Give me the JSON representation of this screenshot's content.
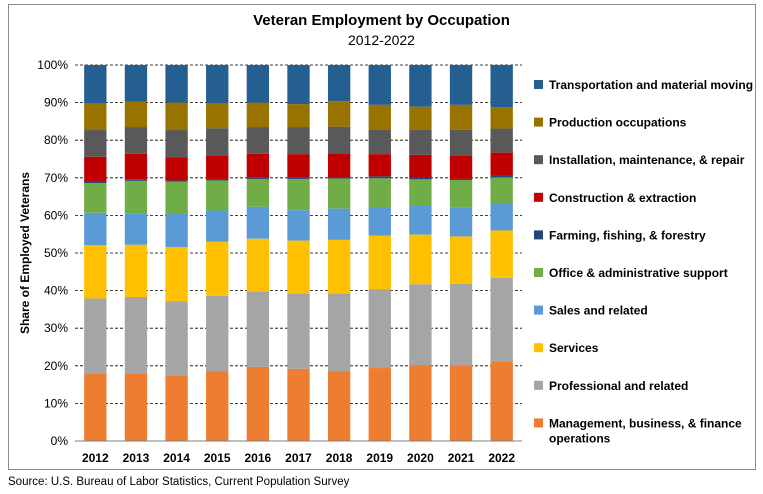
{
  "chart_data": {
    "type": "bar",
    "stacked": true,
    "title": "Veteran Employment by Occupation",
    "subtitle": "2012-2022",
    "xlabel": "",
    "ylabel": "Share of Employed Veterans",
    "ylim": [
      0,
      100
    ],
    "yticks": [
      "0%",
      "10%",
      "20%",
      "30%",
      "40%",
      "50%",
      "60%",
      "70%",
      "80%",
      "90%",
      "100%"
    ],
    "grid": true,
    "legend_position": "right",
    "categories": [
      "2012",
      "2013",
      "2014",
      "2015",
      "2016",
      "2017",
      "2018",
      "2019",
      "2020",
      "2021",
      "2022"
    ],
    "series": [
      {
        "name": "Management, business, & finance operations",
        "color": "#ED7D31",
        "values": [
          18.0,
          18.0,
          17.3,
          18.6,
          19.7,
          19.2,
          18.6,
          19.4,
          20.2,
          20.1,
          21.2
        ]
      },
      {
        "name": "Professional and related",
        "color": "#A5A5A5",
        "values": [
          19.9,
          20.3,
          19.9,
          20.0,
          20.1,
          20.0,
          20.7,
          21.0,
          21.5,
          21.7,
          22.2
        ]
      },
      {
        "name": "Services",
        "color": "#FFC000",
        "values": [
          14.2,
          13.9,
          14.4,
          14.4,
          14.0,
          14.1,
          14.2,
          14.2,
          13.2,
          12.6,
          12.6
        ]
      },
      {
        "name": "Sales and related",
        "color": "#5B9BD5",
        "values": [
          8.6,
          8.4,
          8.9,
          8.3,
          8.5,
          8.1,
          8.3,
          7.5,
          7.6,
          7.8,
          7.3
        ]
      },
      {
        "name": "Office & administrative support",
        "color": "#70AD47",
        "values": [
          7.9,
          8.6,
          8.5,
          8.0,
          7.4,
          8.3,
          8.0,
          7.8,
          7.1,
          7.2,
          6.8
        ]
      },
      {
        "name": "Farming, fishing, & forestry",
        "color": "#264478",
        "values": [
          0.4,
          0.4,
          0.3,
          0.4,
          0.4,
          0.5,
          0.4,
          0.5,
          0.4,
          0.3,
          0.4
        ]
      },
      {
        "name": "Construction & extraction",
        "color": "#C00000",
        "values": [
          6.6,
          6.8,
          6.2,
          6.3,
          6.3,
          6.1,
          6.3,
          5.9,
          6.1,
          6.1,
          6.2
        ]
      },
      {
        "name": "Installation, maintenance, & repair",
        "color": "#595959",
        "values": [
          7.1,
          7.1,
          7.2,
          7.2,
          7.1,
          7.2,
          7.1,
          6.6,
          6.8,
          7.0,
          6.4
        ]
      },
      {
        "name": "Production occupations",
        "color": "#997300",
        "values": [
          7.2,
          6.8,
          7.3,
          6.7,
          6.5,
          6.1,
          6.8,
          6.5,
          6.0,
          6.6,
          5.7
        ]
      },
      {
        "name": "Transportation and material moving",
        "color": "#255E91",
        "values": [
          10.1,
          9.7,
          10.0,
          10.1,
          10.0,
          10.4,
          9.6,
          10.6,
          11.1,
          10.6,
          11.2
        ]
      }
    ]
  },
  "source": "Source: U.S. Bureau of Labor Statistics, Current Population Survey"
}
